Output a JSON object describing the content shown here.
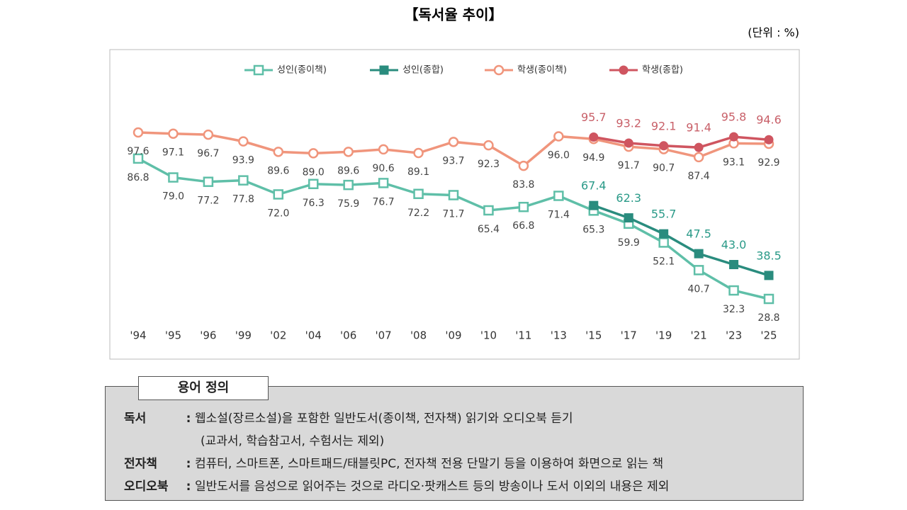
{
  "chart_data": {
    "type": "line",
    "title": "【독서율 추이】",
    "unit": "(단위 : %)",
    "categories": [
      "'94",
      "'95",
      "'96",
      "'99",
      "'02",
      "'04",
      "'06",
      "'07",
      "'08",
      "'09",
      "'10",
      "'11",
      "'13",
      "'15",
      "'17",
      "'19",
      "'21",
      "'23",
      "'25"
    ],
    "series": [
      {
        "name": "성인(종이책)",
        "color": "#5fbfa8",
        "marker": "square-open",
        "label_side": "below",
        "label_color": "#444444",
        "values": [
          86.8,
          79.0,
          77.2,
          77.8,
          72.0,
          76.3,
          75.9,
          76.7,
          72.2,
          71.7,
          65.4,
          66.8,
          71.4,
          65.3,
          59.9,
          52.1,
          40.7,
          32.3,
          28.8
        ],
        "value_labels": [
          "86.8",
          "79.0",
          "77.2",
          "77.8",
          "72.0",
          "76.3",
          "75.9",
          "76.7",
          "72.2",
          "71.7",
          "65.4",
          "66.8",
          "71.4",
          "65.3",
          "59.9",
          "52.1",
          "40.7",
          "32.3",
          "28.8"
        ]
      },
      {
        "name": "성인(종합)",
        "color": "#2a8c7e",
        "marker": "square",
        "label_side": "above",
        "label_color": "#2a9a88",
        "values": [
          null,
          null,
          null,
          null,
          null,
          null,
          null,
          null,
          null,
          null,
          null,
          null,
          null,
          67.4,
          62.3,
          55.7,
          47.5,
          43.0,
          38.5
        ],
        "value_labels": [
          null,
          null,
          null,
          null,
          null,
          null,
          null,
          null,
          null,
          null,
          null,
          null,
          null,
          "67.4",
          "62.3",
          "55.7",
          "47.5",
          "43.0",
          "38.5"
        ]
      },
      {
        "name": "학생(종이책)",
        "color": "#f0957c",
        "marker": "circle-open",
        "label_side": "below",
        "label_color": "#444444",
        "values": [
          97.6,
          97.1,
          96.7,
          93.9,
          89.6,
          89.0,
          89.6,
          90.6,
          89.1,
          93.7,
          92.3,
          83.8,
          96.0,
          94.9,
          91.7,
          90.7,
          87.4,
          93.1,
          92.9
        ],
        "value_labels": [
          "97.6",
          "97.1",
          "96.7",
          "93.9",
          "89.6",
          "89.0",
          "89.6",
          "90.6",
          "89.1",
          "93.7",
          "92.3",
          "83.8",
          "96.0",
          "94.9",
          "91.7",
          "90.7",
          "87.4",
          "93.1",
          "92.9"
        ]
      },
      {
        "name": "학생(종합)",
        "color": "#cf5560",
        "marker": "circle",
        "label_side": "above",
        "label_color": "#c85f68",
        "values": [
          null,
          null,
          null,
          null,
          null,
          null,
          null,
          null,
          null,
          null,
          null,
          null,
          null,
          95.7,
          93.2,
          92.1,
          91.4,
          95.8,
          94.6
        ],
        "value_labels": [
          null,
          null,
          null,
          null,
          null,
          null,
          null,
          null,
          null,
          null,
          null,
          null,
          null,
          "95.7",
          "93.2",
          "92.1",
          "91.4",
          "95.8",
          "94.6"
        ]
      }
    ]
  },
  "definitions": {
    "title": "용어 정의",
    "separator": ":",
    "items": [
      {
        "term": "독서",
        "desc": "웹소설(장르소설)을 포함한 일반도서(종이책, 전자책) 읽기와 오디오북 듣기",
        "note": "(교과서, 학습참고서, 수험서는 제외)"
      },
      {
        "term": "전자책",
        "desc": "컴퓨터, 스마트폰, 스마트패드/태블릿PC, 전자책 전용 단말기 등을 이용하여 화면으로 읽는 책"
      },
      {
        "term": "오디오북",
        "desc": "일반도서를 음성으로 읽어주는 것으로 라디오·팟캐스트 등의 방송이나 도서 이외의 내용은 제외"
      }
    ]
  }
}
